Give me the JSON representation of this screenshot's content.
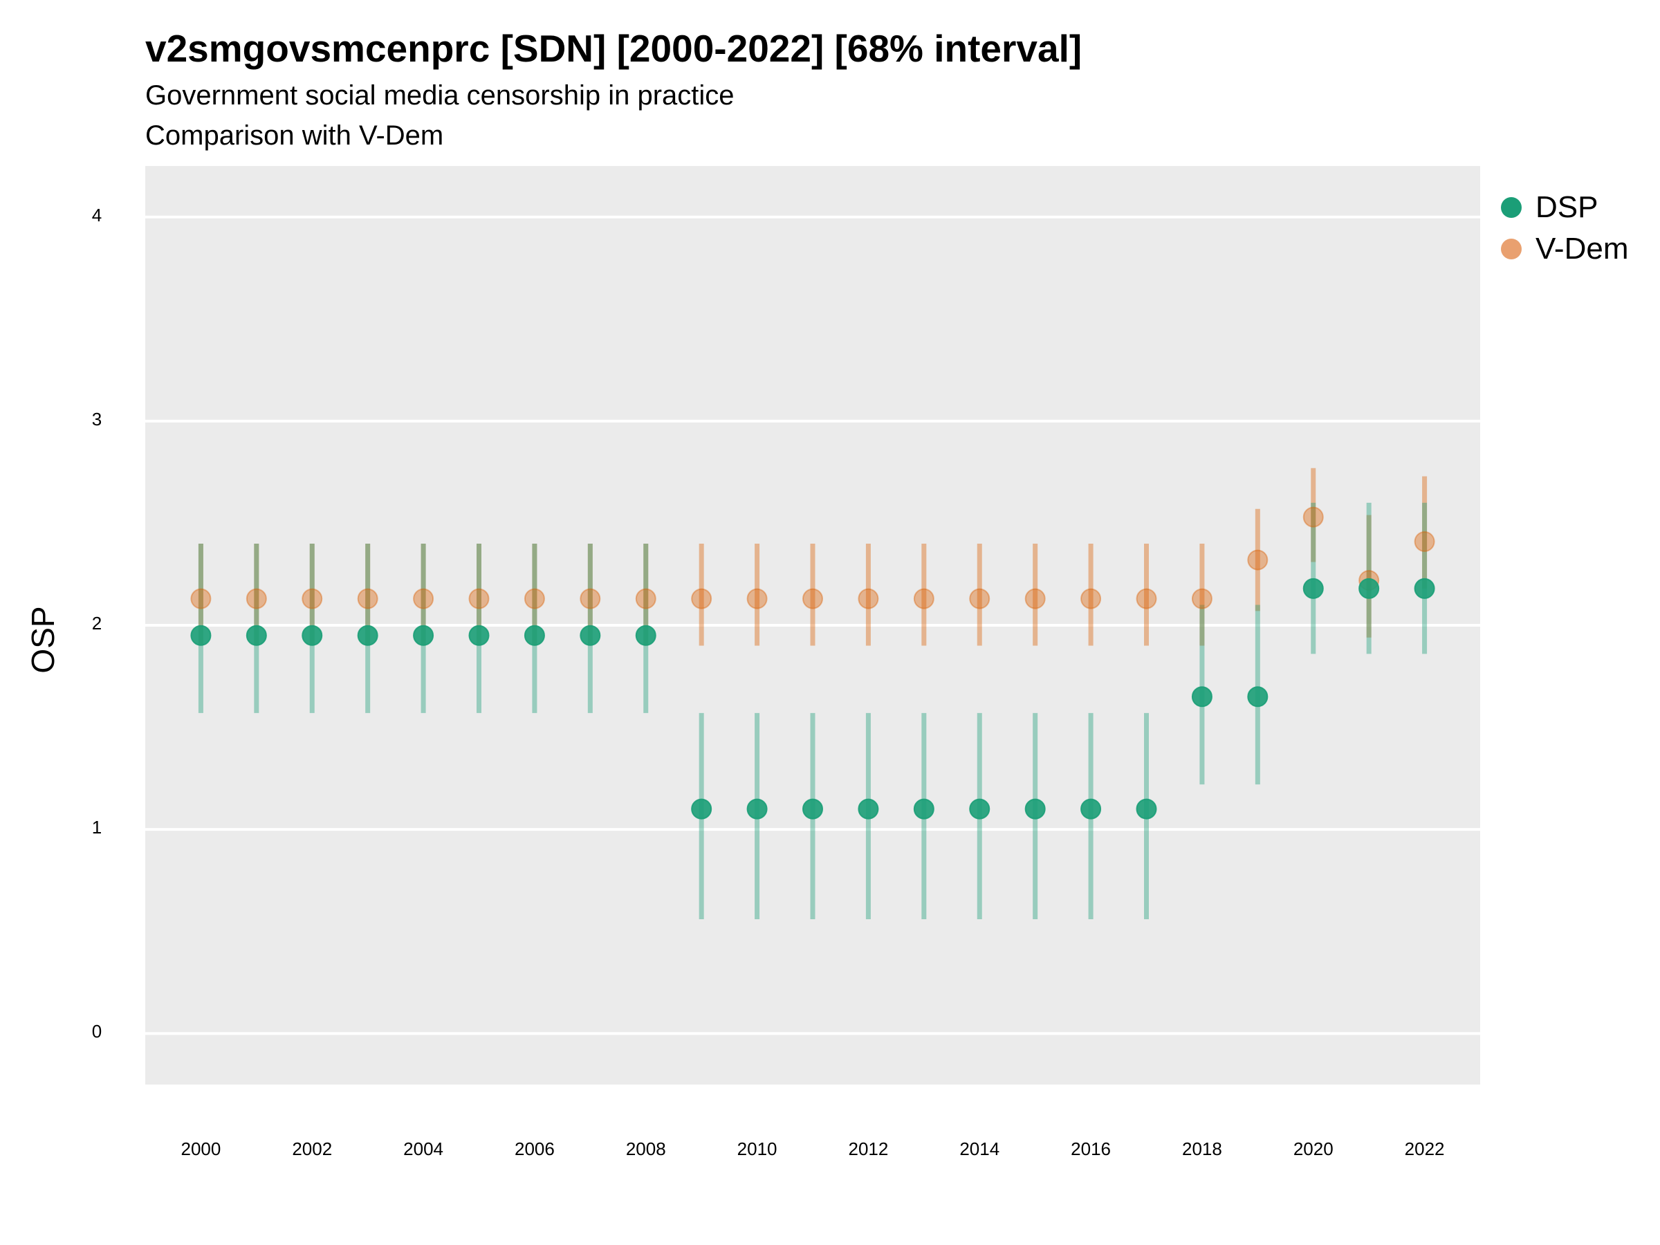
{
  "title": "v2smgovsmcenprc [SDN] [2000-2022] [68% interval]",
  "subtitle": "Government social media censorship in practice",
  "subtitle2": "Comparison with V-Dem",
  "colors": {
    "panel": "#ebebeb",
    "grid": "#ffffff",
    "DSP": "#1b9e77",
    "V-Dem": "#d95f02"
  },
  "legend": [
    {
      "name": "DSP",
      "color": "#1b9e77"
    },
    {
      "name": "V-Dem",
      "color": "#e9a06f"
    }
  ],
  "chart_data": {
    "type": "scatter",
    "title": "v2smgovsmcenprc [SDN] [2000-2022] [68% interval]",
    "subtitle": "Government social media censorship in practice",
    "ylabel": "OSP",
    "xlabel": "",
    "ylim": [
      -0.25,
      4.25
    ],
    "xlim": [
      1999,
      2023
    ],
    "yticks": [
      0,
      1,
      2,
      3,
      4
    ],
    "xticks": [
      2000,
      2002,
      2004,
      2006,
      2008,
      2010,
      2012,
      2014,
      2016,
      2018,
      2020,
      2022
    ],
    "grid": true,
    "legend_position": "right",
    "series": [
      {
        "name": "DSP",
        "color": "#1b9e77",
        "points": [
          {
            "x": 2000,
            "y": 1.95,
            "low": 1.57,
            "high": 2.4
          },
          {
            "x": 2001,
            "y": 1.95,
            "low": 1.57,
            "high": 2.4
          },
          {
            "x": 2002,
            "y": 1.95,
            "low": 1.57,
            "high": 2.4
          },
          {
            "x": 2003,
            "y": 1.95,
            "low": 1.57,
            "high": 2.4
          },
          {
            "x": 2004,
            "y": 1.95,
            "low": 1.57,
            "high": 2.4
          },
          {
            "x": 2005,
            "y": 1.95,
            "low": 1.57,
            "high": 2.4
          },
          {
            "x": 2006,
            "y": 1.95,
            "low": 1.57,
            "high": 2.4
          },
          {
            "x": 2007,
            "y": 1.95,
            "low": 1.57,
            "high": 2.4
          },
          {
            "x": 2008,
            "y": 1.95,
            "low": 1.57,
            "high": 2.4
          },
          {
            "x": 2009,
            "y": 1.1,
            "low": 0.56,
            "high": 1.57
          },
          {
            "x": 2010,
            "y": 1.1,
            "low": 0.56,
            "high": 1.57
          },
          {
            "x": 2011,
            "y": 1.1,
            "low": 0.56,
            "high": 1.57
          },
          {
            "x": 2012,
            "y": 1.1,
            "low": 0.56,
            "high": 1.57
          },
          {
            "x": 2013,
            "y": 1.1,
            "low": 0.56,
            "high": 1.57
          },
          {
            "x": 2014,
            "y": 1.1,
            "low": 0.56,
            "high": 1.57
          },
          {
            "x": 2015,
            "y": 1.1,
            "low": 0.56,
            "high": 1.57
          },
          {
            "x": 2016,
            "y": 1.1,
            "low": 0.56,
            "high": 1.57
          },
          {
            "x": 2017,
            "y": 1.1,
            "low": 0.56,
            "high": 1.57
          },
          {
            "x": 2018,
            "y": 1.65,
            "low": 1.22,
            "high": 2.1
          },
          {
            "x": 2019,
            "y": 1.65,
            "low": 1.22,
            "high": 2.1
          },
          {
            "x": 2020,
            "y": 2.18,
            "low": 1.86,
            "high": 2.6
          },
          {
            "x": 2021,
            "y": 2.18,
            "low": 1.86,
            "high": 2.6
          },
          {
            "x": 2022,
            "y": 2.18,
            "low": 1.86,
            "high": 2.6
          }
        ]
      },
      {
        "name": "V-Dem",
        "color": "#d95f02",
        "points": [
          {
            "x": 2000,
            "y": 2.13,
            "low": 1.9,
            "high": 2.4
          },
          {
            "x": 2001,
            "y": 2.13,
            "low": 1.9,
            "high": 2.4
          },
          {
            "x": 2002,
            "y": 2.13,
            "low": 1.9,
            "high": 2.4
          },
          {
            "x": 2003,
            "y": 2.13,
            "low": 1.9,
            "high": 2.4
          },
          {
            "x": 2004,
            "y": 2.13,
            "low": 1.9,
            "high": 2.4
          },
          {
            "x": 2005,
            "y": 2.13,
            "low": 1.9,
            "high": 2.4
          },
          {
            "x": 2006,
            "y": 2.13,
            "low": 1.9,
            "high": 2.4
          },
          {
            "x": 2007,
            "y": 2.13,
            "low": 1.9,
            "high": 2.4
          },
          {
            "x": 2008,
            "y": 2.13,
            "low": 1.9,
            "high": 2.4
          },
          {
            "x": 2009,
            "y": 2.13,
            "low": 1.9,
            "high": 2.4
          },
          {
            "x": 2010,
            "y": 2.13,
            "low": 1.9,
            "high": 2.4
          },
          {
            "x": 2011,
            "y": 2.13,
            "low": 1.9,
            "high": 2.4
          },
          {
            "x": 2012,
            "y": 2.13,
            "low": 1.9,
            "high": 2.4
          },
          {
            "x": 2013,
            "y": 2.13,
            "low": 1.9,
            "high": 2.4
          },
          {
            "x": 2014,
            "y": 2.13,
            "low": 1.9,
            "high": 2.4
          },
          {
            "x": 2015,
            "y": 2.13,
            "low": 1.9,
            "high": 2.4
          },
          {
            "x": 2016,
            "y": 2.13,
            "low": 1.9,
            "high": 2.4
          },
          {
            "x": 2017,
            "y": 2.13,
            "low": 1.9,
            "high": 2.4
          },
          {
            "x": 2018,
            "y": 2.13,
            "low": 1.9,
            "high": 2.4
          },
          {
            "x": 2019,
            "y": 2.32,
            "low": 2.07,
            "high": 2.57
          },
          {
            "x": 2020,
            "y": 2.53,
            "low": 2.31,
            "high": 2.77
          },
          {
            "x": 2021,
            "y": 2.22,
            "low": 1.94,
            "high": 2.54
          },
          {
            "x": 2022,
            "y": 2.41,
            "low": 2.18,
            "high": 2.73
          }
        ]
      }
    ]
  }
}
